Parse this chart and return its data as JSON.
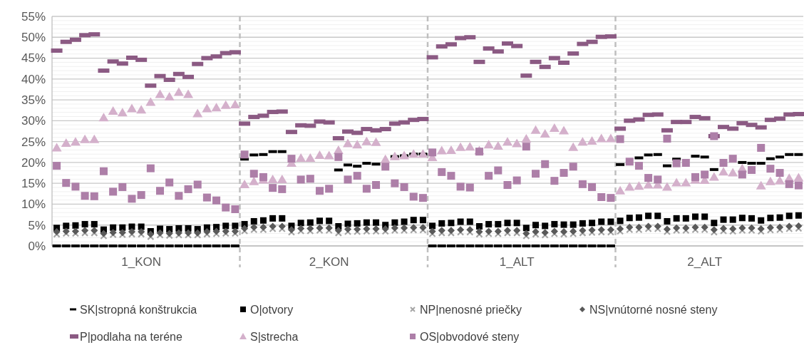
{
  "chart_data": {
    "type": "scatter",
    "categories": [
      null,
      null,
      null,
      null,
      null,
      null,
      null,
      null,
      null,
      "1_KON",
      null,
      null,
      null,
      null,
      null,
      null,
      null,
      null,
      null,
      null,
      null,
      null,
      null,
      null,
      null,
      null,
      null,
      null,
      null,
      "2_KON",
      null,
      null,
      null,
      null,
      null,
      null,
      null,
      null,
      null,
      null,
      null,
      null,
      null,
      null,
      null,
      null,
      null,
      null,
      null,
      "1_ALT",
      null,
      null,
      null,
      null,
      null,
      null,
      null,
      null,
      null,
      null,
      null,
      null,
      null,
      null,
      null,
      null,
      null,
      null,
      null,
      "2_ALT",
      null,
      null,
      null,
      null,
      null,
      null,
      null,
      null,
      null,
      null
    ],
    "ylim": [
      0,
      55
    ],
    "yticks": [
      {
        "value": 0,
        "label": "0%"
      },
      {
        "value": 1,
        "label": null
      },
      {
        "value": 2,
        "label": null
      },
      {
        "value": 3,
        "label": null
      },
      {
        "value": 4,
        "label": null
      },
      {
        "value": 5,
        "label": "5%"
      },
      {
        "value": 6,
        "label": null
      },
      {
        "value": 7,
        "label": null
      },
      {
        "value": 8,
        "label": null
      },
      {
        "value": 9,
        "label": null
      },
      {
        "value": 10,
        "label": "10%"
      },
      {
        "value": 11,
        "label": null
      },
      {
        "value": 12,
        "label": null
      },
      {
        "value": 13,
        "label": null
      },
      {
        "value": 14,
        "label": null
      },
      {
        "value": 15,
        "label": "15%"
      },
      {
        "value": 16,
        "label": null
      },
      {
        "value": 17,
        "label": null
      },
      {
        "value": 18,
        "label": null
      },
      {
        "value": 19,
        "label": null
      },
      {
        "value": 20,
        "label": "20%"
      },
      {
        "value": 21,
        "label": null
      },
      {
        "value": 22,
        "label": null
      },
      {
        "value": 23,
        "label": null
      },
      {
        "value": 24,
        "label": null
      },
      {
        "value": 25,
        "label": "25%"
      },
      {
        "value": 26,
        "label": null
      },
      {
        "value": 27,
        "label": null
      },
      {
        "value": 28,
        "label": null
      },
      {
        "value": 29,
        "label": null
      },
      {
        "value": 30,
        "label": "30%"
      },
      {
        "value": 31,
        "label": null
      },
      {
        "value": 32,
        "label": null
      },
      {
        "value": 33,
        "label": null
      },
      {
        "value": 34,
        "label": null
      },
      {
        "value": 35,
        "label": "35%"
      },
      {
        "value": 36,
        "label": null
      },
      {
        "value": 37,
        "label": null
      },
      {
        "value": 38,
        "label": null
      },
      {
        "value": 39,
        "label": null
      },
      {
        "value": 40,
        "label": "40%"
      },
      {
        "value": 41,
        "label": null
      },
      {
        "value": 42,
        "label": null
      },
      {
        "value": 43,
        "label": null
      },
      {
        "value": 44,
        "label": null
      },
      {
        "value": 45,
        "label": "45%"
      },
      {
        "value": 46,
        "label": null
      },
      {
        "value": 47,
        "label": null
      },
      {
        "value": 48,
        "label": null
      },
      {
        "value": 49,
        "label": null
      },
      {
        "value": 50,
        "label": "50%"
      },
      {
        "value": 51,
        "label": null
      },
      {
        "value": 52,
        "label": null
      },
      {
        "value": 53,
        "label": null
      },
      {
        "value": 54,
        "label": null
      },
      {
        "value": 55,
        "label": "55%"
      }
    ],
    "grid": "y",
    "legend": "bottom",
    "series": [
      {
        "name": "SK|stropná konštrukcia",
        "color": "#000000",
        "marker": "square",
        "values": [
          0,
          0,
          0,
          0,
          0,
          0,
          0,
          0,
          0,
          0,
          0,
          0,
          0,
          0,
          0,
          0,
          0,
          0,
          0,
          0,
          20.8,
          21.8,
          21.9,
          22.6,
          22.6,
          null,
          null,
          null,
          null,
          null,
          18.2,
          19.4,
          19.1,
          19.8,
          19.6,
          null,
          21.4,
          21.6,
          22,
          22,
          0,
          0,
          0,
          0,
          0,
          0,
          0,
          0,
          0,
          0,
          0,
          0,
          0,
          0,
          0,
          0,
          0,
          0,
          0,
          0,
          19.5,
          null,
          21.1,
          21.8,
          21.9,
          19.2,
          20.8,
          null,
          21.5,
          21.3,
          18.3,
          null,
          null,
          20,
          19.8,
          19.8,
          20.9,
          21.3,
          21.9,
          21.9
        ]
      },
      {
        "name": "O|otvory",
        "color": "#000000",
        "marker": "square",
        "values": [
          4.3,
          4.8,
          4.9,
          5.2,
          5.2,
          3.9,
          4.4,
          4.4,
          4.6,
          4.6,
          3.5,
          4.1,
          4,
          4.2,
          4.2,
          4,
          4.4,
          4.5,
          4.8,
          4.8,
          5.2,
          5.9,
          6.1,
          6.6,
          6.6,
          4.8,
          5.5,
          5.6,
          6,
          6,
          4.7,
          5.3,
          5.4,
          5.6,
          5.6,
          5,
          5.6,
          5.8,
          6.2,
          6.2,
          4.8,
          5.4,
          5.5,
          5.8,
          5.8,
          4.7,
          5.2,
          5.2,
          5.5,
          5.5,
          4.3,
          5,
          4.8,
          5.2,
          5.1,
          5.1,
          5.4,
          5.5,
          5.8,
          5.8,
          6,
          6.7,
          6.8,
          7.2,
          7.2,
          5.9,
          6.6,
          6.6,
          7,
          7,
          5.5,
          6.3,
          6.3,
          6.7,
          6.6,
          6.1,
          6.7,
          6.8,
          7.2,
          7.3
        ]
      },
      {
        "name": "NP|nenosné priečky",
        "color": "#a6a6a6",
        "marker": "cross",
        "values": [
          2.8,
          3,
          3,
          3.1,
          3.1,
          2.4,
          2.7,
          2.7,
          2.8,
          2.8,
          2.2,
          2.6,
          2.5,
          2.6,
          2.6,
          2.6,
          2.8,
          2.9,
          3,
          3,
          3.6,
          3.9,
          3.9,
          4.1,
          4.1,
          3.3,
          3.6,
          3.6,
          3.7,
          3.7,
          3.1,
          3.4,
          3.4,
          3.5,
          3.5,
          3.5,
          3.7,
          3.7,
          3.8,
          3.8,
          2.9,
          3.1,
          3.1,
          3.3,
          3.3,
          2.8,
          2.9,
          2.9,
          3.1,
          3.1,
          2.4,
          2.8,
          2.6,
          2.9,
          2.8,
          2.9,
          3.1,
          3.2,
          3.3,
          3.3,
          3.5,
          3.9,
          3.9,
          4.1,
          4.1,
          3.4,
          3.7,
          3.7,
          3.9,
          3.9,
          3.3,
          3.6,
          3.5,
          3.7,
          3.7,
          3.5,
          3.8,
          3.9,
          4.1,
          4.2
        ]
      },
      {
        "name": "NS|vnútorné nosné steny",
        "color": "#595959",
        "marker": "diamond",
        "values": [
          3.4,
          3.5,
          3.5,
          3.7,
          3.7,
          3,
          3.2,
          3.2,
          3.4,
          3.4,
          2.8,
          3.1,
          3,
          3.1,
          3.1,
          3.1,
          3.4,
          3.5,
          3.5,
          3.5,
          4.2,
          4.5,
          4.5,
          4.7,
          4.7,
          3.9,
          4.2,
          4.2,
          4.3,
          4.3,
          3.7,
          4,
          4,
          4.1,
          4.1,
          4.1,
          4.3,
          4.3,
          4.4,
          4.4,
          3.5,
          3.7,
          3.7,
          3.9,
          3.9,
          3.4,
          3.5,
          3.5,
          3.7,
          3.7,
          3,
          3.4,
          3.2,
          3.5,
          3.4,
          3.5,
          3.7,
          3.8,
          3.9,
          3.9,
          4.1,
          4.5,
          4.5,
          4.7,
          4.7,
          4,
          4.3,
          4.3,
          4.5,
          4.5,
          3.9,
          4.2,
          4.1,
          4.3,
          4.3,
          4.1,
          4.4,
          4.5,
          4.7,
          4.8
        ]
      },
      {
        "name": "P|podlaha na teréne",
        "color": "#8b5a83",
        "marker": "square",
        "values": [
          46.8,
          48.9,
          49.4,
          50.5,
          50.7,
          42,
          44.2,
          43.7,
          45.1,
          44.6,
          38.4,
          40.7,
          39.8,
          41.2,
          40.5,
          43.6,
          45,
          45.4,
          46.2,
          46.4,
          29.3,
          30.9,
          31.2,
          32.1,
          32.2,
          27.3,
          28.9,
          28.8,
          29.8,
          29.6,
          25.8,
          27.4,
          27.1,
          28,
          27.7,
          28,
          29.3,
          29.6,
          30.2,
          30.4,
          45.2,
          47.8,
          48.3,
          49.8,
          50,
          44.1,
          47.3,
          46.6,
          48.5,
          47.9,
          40.8,
          44.1,
          42.9,
          45,
          43.9,
          46.1,
          48.4,
          48.9,
          50.1,
          50.2,
          28.1,
          30,
          30.3,
          31.4,
          31.5,
          27.7,
          29.7,
          29.7,
          30.9,
          30.6,
          26.3,
          28.5,
          28.1,
          29.4,
          29,
          28.4,
          30.2,
          30.5,
          31.5,
          31.6
        ]
      },
      {
        "name": "S|strecha",
        "color": "#d4b0cb",
        "marker": "triangle",
        "values": [
          23.5,
          24.6,
          24.9,
          25.5,
          25.5,
          30.7,
          32.3,
          31.9,
          32.9,
          32.6,
          34.4,
          36.3,
          35.7,
          36.8,
          36.3,
          31.7,
          32.9,
          33.1,
          33.7,
          33.8,
          14.7,
          15.4,
          15.8,
          15.9,
          15.9,
          19.8,
          21,
          21,
          21.7,
          21.6,
          22.9,
          24.5,
          24.2,
          25,
          24.8,
          20.7,
          21.4,
          21.6,
          22,
          22,
          21.2,
          22.8,
          22.9,
          23.6,
          23.7,
          22.8,
          24.2,
          23.9,
          24.9,
          24.5,
          25.6,
          27.7,
          26.8,
          28.2,
          27.6,
          23.6,
          24.9,
          25.1,
          25.7,
          25.7,
          13.2,
          14.1,
          14.3,
          14.6,
          14.6,
          14.1,
          15.1,
          15.1,
          15.8,
          15.7,
          16.5,
          17.7,
          17.5,
          18.5,
          null,
          14.4,
          15.4,
          15.6,
          16.2,
          16.3
        ]
      },
      {
        "name": "OS|obvodové steny",
        "color": "#ad7fa8",
        "marker": "square",
        "values": [
          19.2,
          15.1,
          14.2,
          12,
          11.9,
          17.9,
          13,
          14.1,
          11.3,
          12.2,
          18.6,
          13.2,
          15.2,
          12,
          13.6,
          14.7,
          11.6,
          10.9,
          9.2,
          8.8,
          21.9,
          17.3,
          16.5,
          13.9,
          13.6,
          20.9,
          15.9,
          16.1,
          13.2,
          13.7,
          21.3,
          15.9,
          16.8,
          13.7,
          14.6,
          19,
          15,
          14.1,
          11.8,
          11.5,
          22.4,
          17.7,
          16.8,
          14.2,
          14,
          22.6,
          16.8,
          18.1,
          14.6,
          15.7,
          23.8,
          17.3,
          19.6,
          15.6,
          17.5,
          19,
          14.8,
          14.1,
          11.7,
          11.5,
          25.6,
          20.2,
          19.2,
          16.3,
          15.9,
          25.7,
          19.8,
          19.9,
          16.5,
          17.1,
          26.3,
          19.9,
          20.9,
          17.1,
          18.2,
          23.5,
          18.5,
          17.5,
          14.8,
          14.5
        ]
      }
    ]
  }
}
